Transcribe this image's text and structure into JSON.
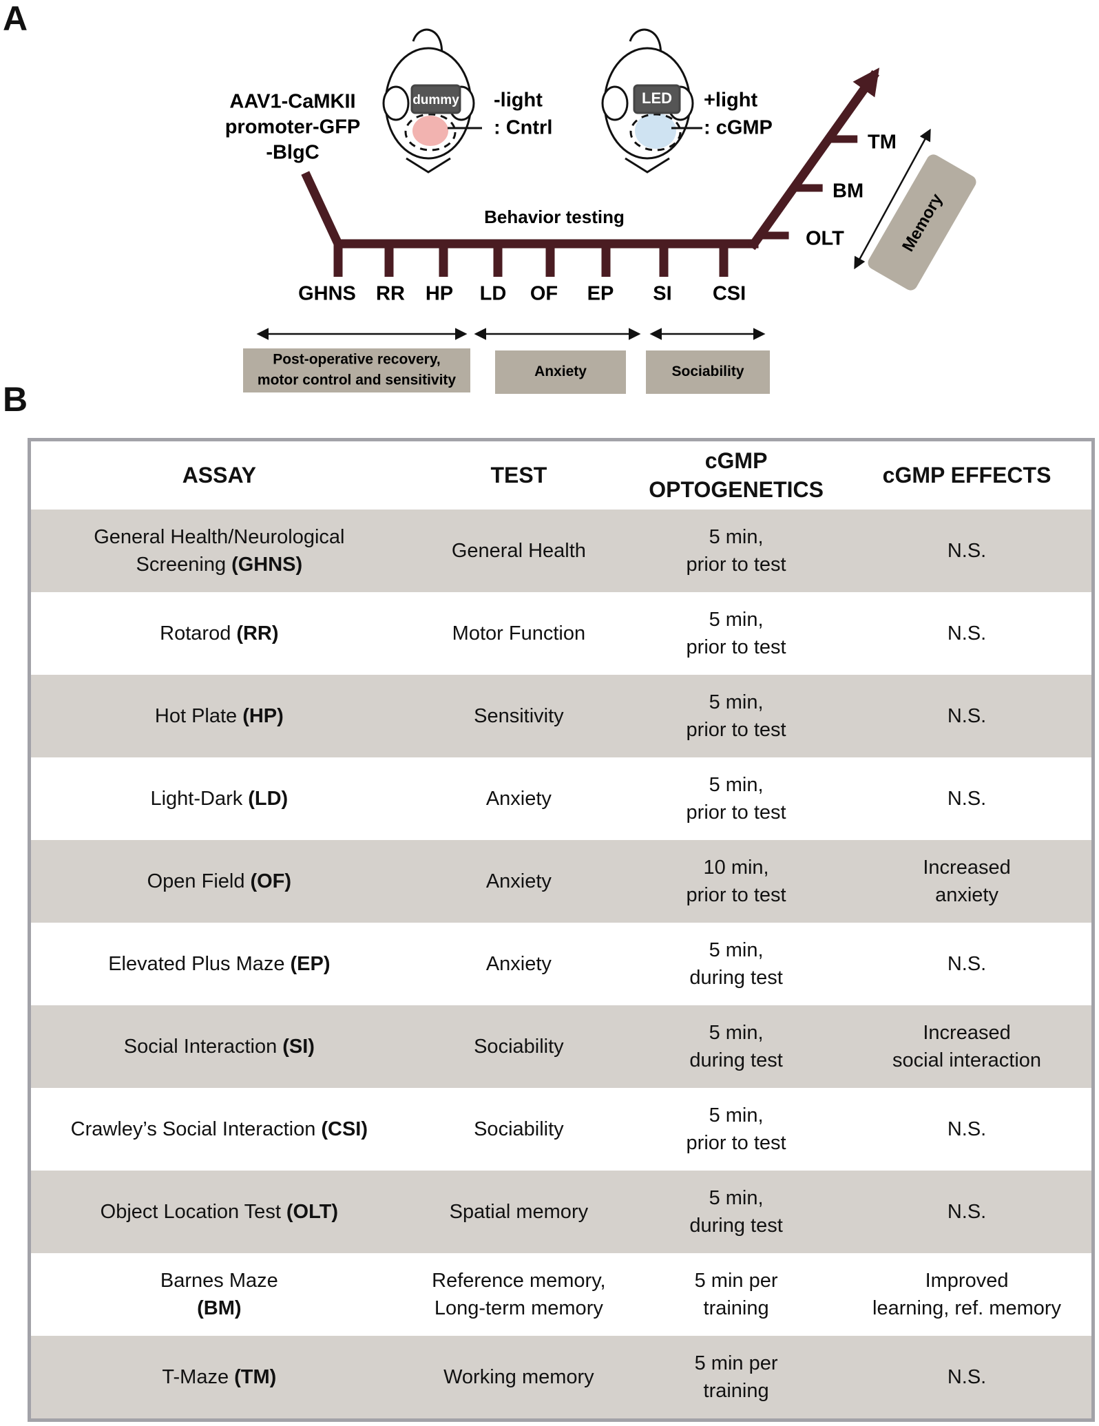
{
  "panel_a": {
    "label": "A",
    "injection": [
      "AAV1-CaMKII",
      "promoter-GFP",
      "-BlgC"
    ],
    "control": {
      "device": "dummy",
      "lines": [
        "-light",
        ": Cntrl"
      ]
    },
    "experimental": {
      "device": "LED",
      "lines": [
        "+light",
        ": cGMP"
      ]
    },
    "timeline_label": "Behavior testing",
    "tests": [
      "GHNS",
      "RR",
      "HP",
      "LD",
      "OF",
      "EP",
      "SI",
      "CSI"
    ],
    "memory_tests": [
      "OLT",
      "BM",
      "TM"
    ],
    "groups": [
      {
        "lines": [
          "Post-operative recovery,",
          "motor control and sensitivity"
        ]
      },
      {
        "lines": [
          "Anxiety"
        ]
      },
      {
        "lines": [
          "Sociability"
        ]
      }
    ],
    "memory_group": "Memory"
  },
  "panel_b": {
    "label": "B",
    "header": [
      [
        "ASSAY"
      ],
      [
        "TEST"
      ],
      [
        "cGMP",
        "OPTOGENETICS"
      ],
      [
        "cGMP EFFECTS"
      ]
    ],
    "rows": [
      {
        "assay": [
          [
            {
              "text": "General Health/Neurological"
            }
          ],
          [
            {
              "text": "Screening"
            },
            {
              "text": "(GHNS)",
              "bold": true
            }
          ]
        ],
        "test": [
          "General Health"
        ],
        "optogenetics": [
          "5 min,",
          "prior to test"
        ],
        "effects": [
          "N.S."
        ]
      },
      {
        "assay": [
          [
            {
              "text": "Rotarod"
            },
            {
              "text": "(RR)",
              "bold": true
            }
          ]
        ],
        "test": [
          "Motor Function"
        ],
        "optogenetics": [
          "5 min,",
          "prior to test"
        ],
        "effects": [
          "N.S."
        ]
      },
      {
        "assay": [
          [
            {
              "text": "Hot Plate"
            },
            {
              "text": "(HP)",
              "bold": true
            }
          ]
        ],
        "test": [
          "Sensitivity"
        ],
        "optogenetics": [
          "5 min,",
          "prior to test"
        ],
        "effects": [
          "N.S."
        ]
      },
      {
        "assay": [
          [
            {
              "text": "Light-Dark"
            },
            {
              "text": "(LD)",
              "bold": true
            }
          ]
        ],
        "test": [
          "Anxiety"
        ],
        "optogenetics": [
          "5 min,",
          "prior to test"
        ],
        "effects": [
          "N.S."
        ]
      },
      {
        "assay": [
          [
            {
              "text": "Open Field"
            },
            {
              "text": "(OF)",
              "bold": true
            }
          ]
        ],
        "test": [
          "Anxiety"
        ],
        "optogenetics": [
          "10 min,",
          "prior to test"
        ],
        "effects": [
          "Increased",
          "anxiety"
        ]
      },
      {
        "assay": [
          [
            {
              "text": "Elevated Plus  Maze"
            },
            {
              "text": "(EP)",
              "bold": true
            }
          ]
        ],
        "test": [
          "Anxiety"
        ],
        "optogenetics": [
          "5 min,",
          "during test"
        ],
        "effects": [
          "N.S."
        ]
      },
      {
        "assay": [
          [
            {
              "text": "Social Interaction"
            },
            {
              "text": "(SI)",
              "bold": true
            }
          ]
        ],
        "test": [
          "Sociability"
        ],
        "optogenetics": [
          "5 min,",
          "during test"
        ],
        "effects": [
          "Increased",
          "social interaction"
        ]
      },
      {
        "assay": [
          [
            {
              "text": "Crawley’s Social Interaction"
            },
            {
              "text": "(CSI)",
              "bold": true
            }
          ]
        ],
        "test": [
          "Sociability"
        ],
        "optogenetics": [
          "5 min,",
          "prior to test"
        ],
        "effects": [
          "N.S."
        ]
      },
      {
        "assay": [
          [
            {
              "text": "Object Location Test"
            },
            {
              "text": "(OLT)",
              "bold": true
            }
          ]
        ],
        "test": [
          "Spatial memory"
        ],
        "optogenetics": [
          "5 min,",
          "during test"
        ],
        "effects": [
          "N.S."
        ]
      },
      {
        "assay": [
          [
            {
              "text": "Barnes Maze"
            }
          ],
          [
            {
              "text": "(BM)",
              "bold": true
            }
          ]
        ],
        "test": [
          "Reference memory,",
          "Long-term memory"
        ],
        "optogenetics": [
          "5 min per",
          "training"
        ],
        "effects": [
          "Improved",
          "learning, ref. memory"
        ]
      },
      {
        "assay": [
          [
            {
              "text": "T-Maze"
            },
            {
              "text": "(TM)",
              "bold": true
            }
          ]
        ],
        "test": [
          "Working memory"
        ],
        "optogenetics": [
          "5 min per",
          "training"
        ],
        "effects": [
          "N.S."
        ]
      }
    ]
  }
}
